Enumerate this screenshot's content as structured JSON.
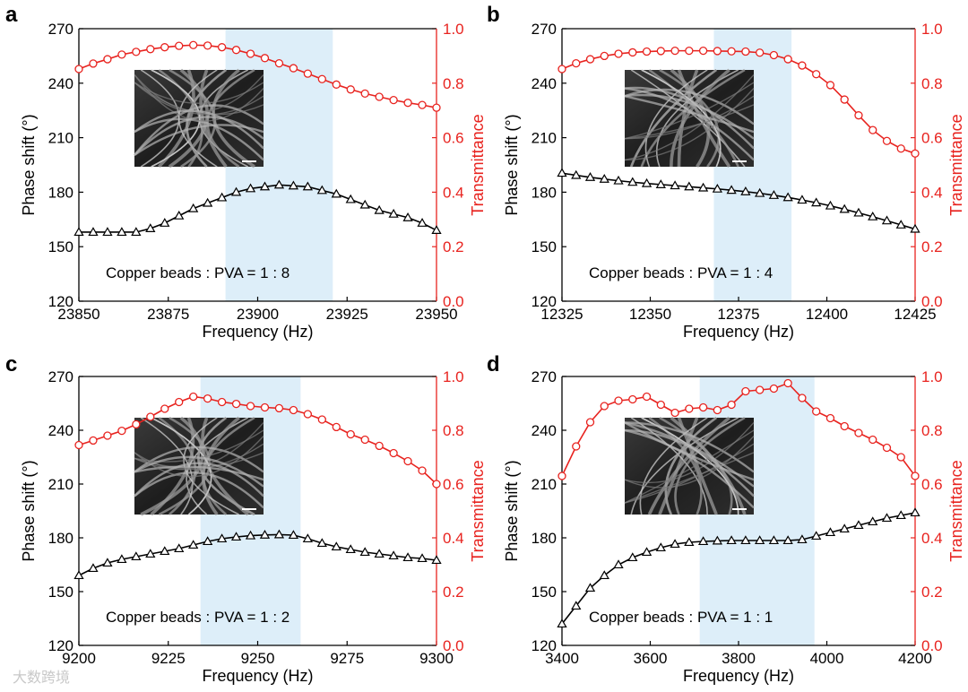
{
  "watermark": "大数跨境",
  "chart_data": [
    {
      "panel": "a",
      "type": "line",
      "xlabel": "Frequency (Hz)",
      "ylabel_left": "Phase shift (°)",
      "ylabel_right": "Transmittance",
      "annotation": "Copper beads : PVA = 1 : 8",
      "xlim": [
        23850,
        23950
      ],
      "xticks": [
        23850,
        23875,
        23900,
        23925,
        23950
      ],
      "ylim_left": [
        120,
        270
      ],
      "yticks_left": [
        120,
        150,
        180,
        210,
        240,
        270
      ],
      "ylim_right": [
        0,
        1.0
      ],
      "yticks_right": [
        "0.0",
        "0.2",
        "0.4",
        "0.6",
        "0.8",
        "1.0"
      ],
      "shaded_range": [
        23891,
        23921
      ],
      "x": [
        23850,
        23854,
        23858,
        23862,
        23866,
        23870,
        23874,
        23878,
        23882,
        23886,
        23890,
        23894,
        23898,
        23902,
        23906,
        23910,
        23914,
        23918,
        23922,
        23926,
        23930,
        23934,
        23938,
        23942,
        23946,
        23950
      ],
      "series": [
        {
          "name": "Phase shift",
          "axis": "left",
          "color": "#000000",
          "marker": "triangle",
          "values": [
            158,
            158,
            158,
            158,
            158,
            160,
            163,
            167,
            171,
            174,
            177,
            180,
            182,
            183,
            184,
            183.5,
            183,
            181,
            179,
            176,
            173,
            170,
            168,
            166,
            163,
            159
          ]
        },
        {
          "name": "Transmittance",
          "axis": "right",
          "color": "#e8231f",
          "marker": "circle",
          "values": [
            0.852,
            0.872,
            0.888,
            0.905,
            0.915,
            0.925,
            0.932,
            0.937,
            0.94,
            0.938,
            0.932,
            0.922,
            0.908,
            0.892,
            0.873,
            0.855,
            0.835,
            0.815,
            0.795,
            0.777,
            0.762,
            0.75,
            0.738,
            0.728,
            0.72,
            0.71
          ]
        }
      ]
    },
    {
      "panel": "b",
      "type": "line",
      "xlabel": "Frequency (Hz)",
      "ylabel_left": "Phase shift (°)",
      "ylabel_right": "Transmittance",
      "annotation": "Copper beads : PVA = 1 : 4",
      "xlim": [
        12325,
        12425
      ],
      "xticks": [
        12325,
        12350,
        12375,
        12400,
        12425
      ],
      "ylim_left": [
        120,
        270
      ],
      "yticks_left": [
        120,
        150,
        180,
        210,
        240,
        270
      ],
      "ylim_right": [
        0,
        1.0
      ],
      "yticks_right": [
        "0.0",
        "0.2",
        "0.4",
        "0.6",
        "0.8",
        "1.0"
      ],
      "shaded_range": [
        12368,
        12390
      ],
      "x": [
        12325,
        12329,
        12333,
        12337,
        12341,
        12345,
        12349,
        12353,
        12357,
        12361,
        12365,
        12369,
        12373,
        12377,
        12381,
        12385,
        12389,
        12393,
        12397,
        12401,
        12405,
        12409,
        12413,
        12417,
        12421,
        12425
      ],
      "series": [
        {
          "name": "Phase shift",
          "axis": "left",
          "color": "#000000",
          "marker": "triangle",
          "values": [
            190.5,
            189.3,
            188.2,
            187.2,
            186.3,
            185.5,
            184.8,
            184.2,
            183.6,
            183,
            182.4,
            181.8,
            181.1,
            180.3,
            179.4,
            178.3,
            177.1,
            175.7,
            174.2,
            172.5,
            170.6,
            168.6,
            166.5,
            164.3,
            162,
            159.7
          ]
        },
        {
          "name": "Transmittance",
          "axis": "right",
          "color": "#e8231f",
          "marker": "circle",
          "values": [
            0.852,
            0.873,
            0.888,
            0.9,
            0.908,
            0.913,
            0.916,
            0.918,
            0.919,
            0.919,
            0.919,
            0.918,
            0.917,
            0.916,
            0.912,
            0.903,
            0.888,
            0.865,
            0.833,
            0.793,
            0.74,
            0.682,
            0.628,
            0.588,
            0.56,
            0.542
          ]
        }
      ]
    },
    {
      "panel": "c",
      "type": "line",
      "xlabel": "Frequency (Hz)",
      "ylabel_left": "Phase shift (°)",
      "ylabel_right": "Transmittance",
      "annotation": "Copper beads : PVA = 1 : 2",
      "xlim": [
        9200,
        9300
      ],
      "xticks": [
        9200,
        9225,
        9250,
        9275,
        9300
      ],
      "ylim_left": [
        120,
        270
      ],
      "yticks_left": [
        120,
        150,
        180,
        210,
        240,
        270
      ],
      "ylim_right": [
        0,
        1.0
      ],
      "yticks_right": [
        "0.0",
        "0.2",
        "0.4",
        "0.6",
        "0.8",
        "1.0"
      ],
      "shaded_range": [
        9234,
        9262
      ],
      "x": [
        9200,
        9204,
        9208,
        9212,
        9216,
        9220,
        9224,
        9228,
        9232,
        9236,
        9240,
        9244,
        9248,
        9252,
        9256,
        9260,
        9264,
        9268,
        9272,
        9276,
        9280,
        9284,
        9288,
        9292,
        9296,
        9300
      ],
      "series": [
        {
          "name": "Phase shift",
          "axis": "left",
          "color": "#000000",
          "marker": "triangle",
          "values": [
            159,
            163,
            166,
            168,
            169.5,
            171,
            172.5,
            174,
            176,
            178,
            179.5,
            180.5,
            181.2,
            181.6,
            181.8,
            181.5,
            179.5,
            177,
            175,
            173.5,
            172,
            171,
            170,
            169,
            168.5,
            167.5
          ]
        },
        {
          "name": "Transmittance",
          "axis": "right",
          "color": "#e8231f",
          "marker": "circle",
          "values": [
            0.745,
            0.762,
            0.78,
            0.798,
            0.822,
            0.85,
            0.88,
            0.905,
            0.925,
            0.918,
            0.905,
            0.898,
            0.89,
            0.885,
            0.882,
            0.875,
            0.86,
            0.84,
            0.812,
            0.785,
            0.765,
            0.742,
            0.715,
            0.685,
            0.65,
            0.6
          ]
        }
      ]
    },
    {
      "panel": "d",
      "type": "line",
      "xlabel": "Frequency (Hz)",
      "ylabel_left": "Phase shift (°)",
      "ylabel_right": "Transmittance",
      "annotation": "Copper beads : PVA = 1 : 1",
      "xlim": [
        3400,
        4200
      ],
      "xticks": [
        3400,
        3600,
        3800,
        4000,
        4200
      ],
      "ylim_left": [
        120,
        270
      ],
      "yticks_left": [
        120,
        150,
        180,
        210,
        240,
        270
      ],
      "ylim_right": [
        0,
        1.0
      ],
      "yticks_right": [
        "0.0",
        "0.2",
        "0.4",
        "0.6",
        "0.8",
        "1.0"
      ],
      "shaded_range": [
        3712,
        3972
      ],
      "x": [
        3400,
        3432,
        3464,
        3496,
        3528,
        3560,
        3592,
        3624,
        3656,
        3688,
        3720,
        3752,
        3784,
        3816,
        3848,
        3880,
        3912,
        3944,
        3976,
        4008,
        4040,
        4072,
        4104,
        4136,
        4168,
        4200
      ],
      "series": [
        {
          "name": "Phase shift",
          "axis": "left",
          "color": "#000000",
          "marker": "triangle",
          "values": [
            132,
            142,
            152,
            159,
            165,
            169,
            172,
            174.5,
            176.5,
            177.5,
            178,
            178.3,
            178.5,
            178.5,
            178.5,
            178.5,
            178.5,
            179,
            181,
            183,
            185,
            187,
            189,
            191,
            192.5,
            194
          ]
        },
        {
          "name": "Transmittance",
          "axis": "right",
          "color": "#e8231f",
          "marker": "circle",
          "values": [
            0.63,
            0.74,
            0.83,
            0.89,
            0.91,
            0.915,
            0.925,
            0.895,
            0.865,
            0.88,
            0.885,
            0.875,
            0.895,
            0.945,
            0.95,
            0.955,
            0.975,
            0.92,
            0.87,
            0.845,
            0.815,
            0.79,
            0.765,
            0.735,
            0.7,
            0.63
          ]
        }
      ]
    }
  ]
}
